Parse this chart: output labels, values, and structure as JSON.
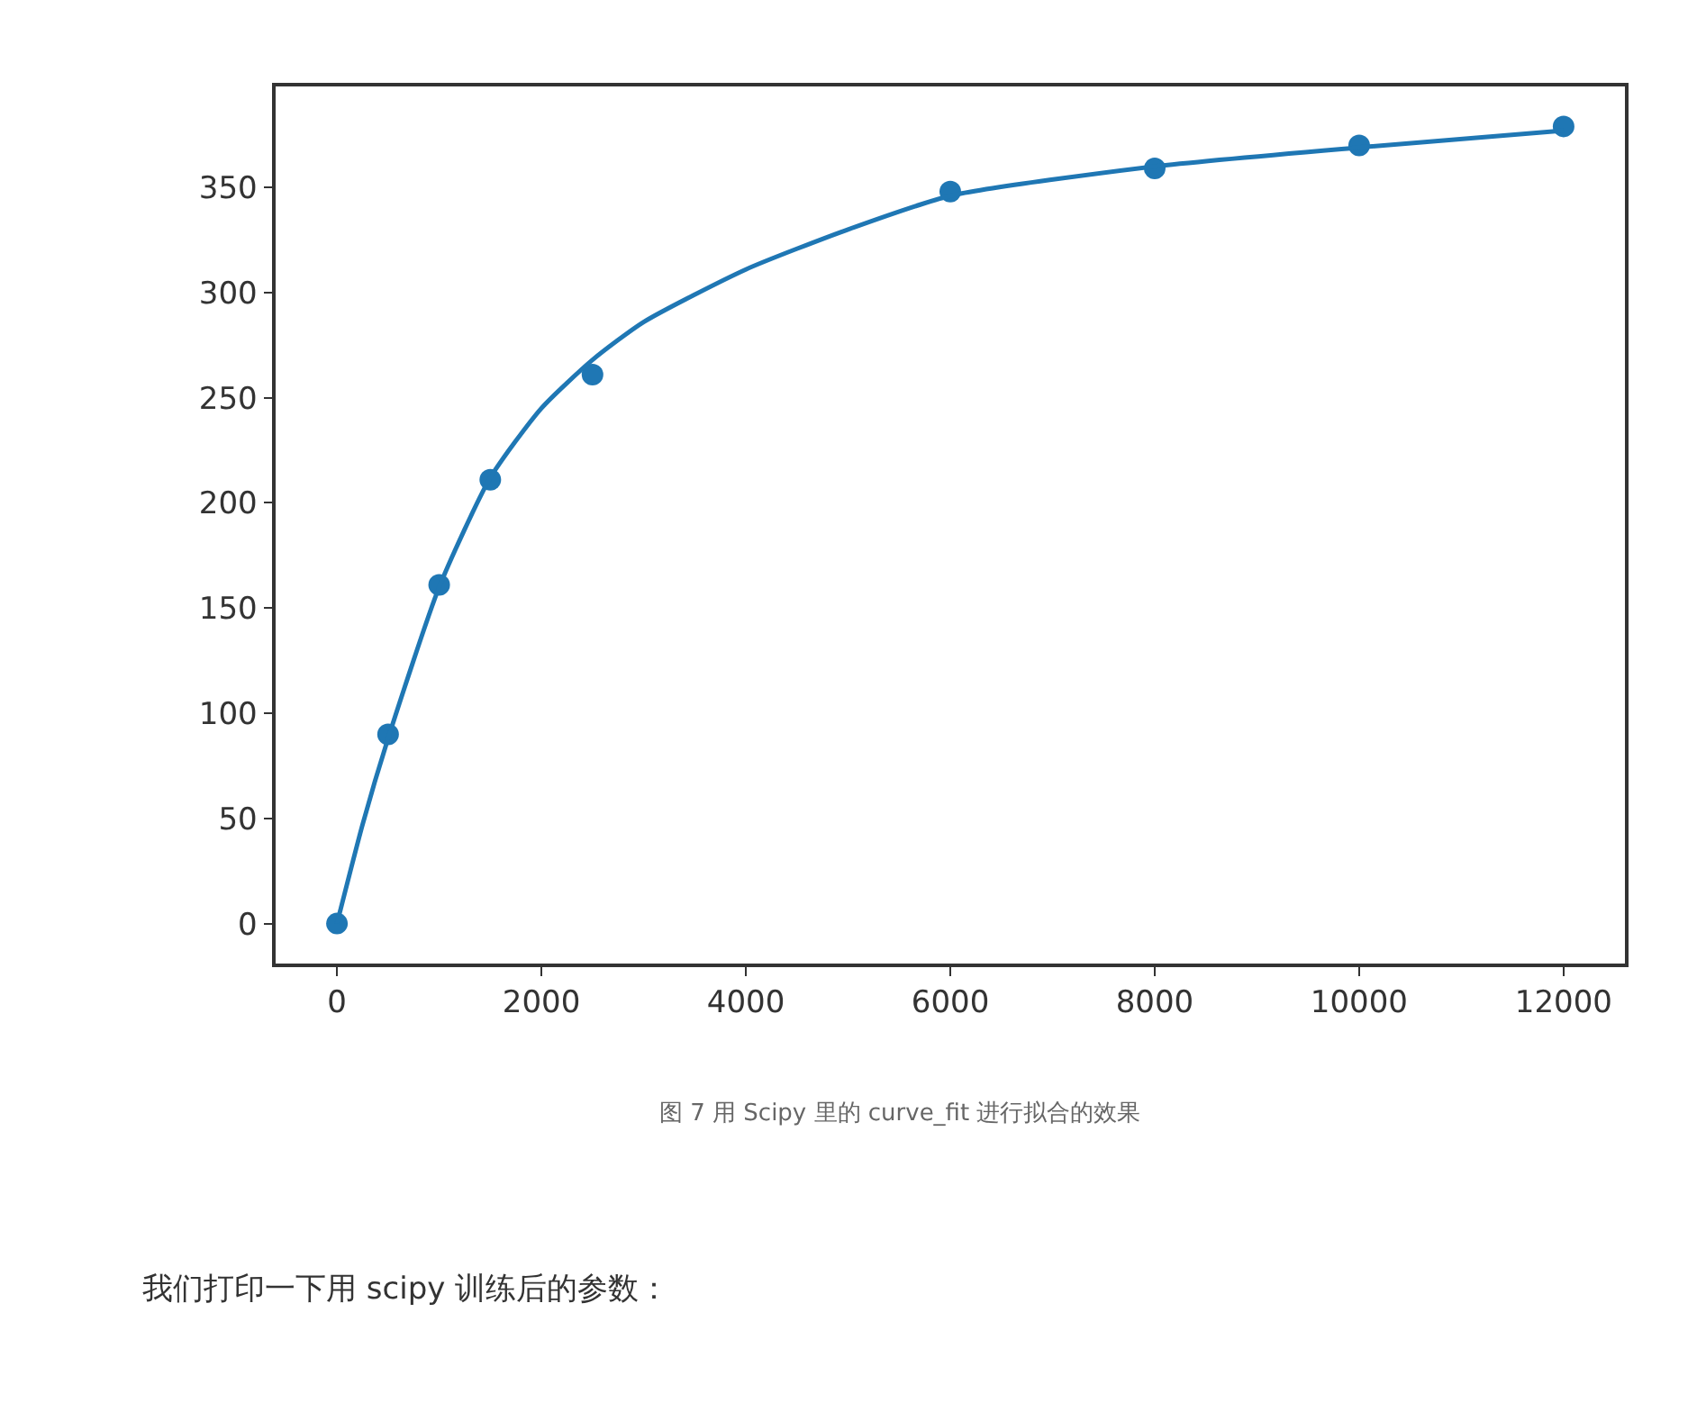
{
  "chart_data": {
    "type": "scatter",
    "series": [
      {
        "color": "#1f77b4",
        "marker": "circle",
        "x": [
          0,
          500,
          1000,
          1500,
          2500,
          6000,
          8000,
          10000,
          12000
        ],
        "values": [
          0,
          90,
          161,
          211,
          261,
          348,
          359,
          370,
          379
        ]
      },
      {
        "type": "line",
        "color": "#1f77b4",
        "marker": "none",
        "line_style": "solid",
        "x": [
          0,
          250,
          500,
          1000,
          1500,
          2000,
          2500,
          3000,
          4000,
          5000,
          6000,
          8000,
          10000,
          12000
        ],
        "values": [
          0,
          47,
          88,
          160,
          212,
          245,
          268,
          286,
          311,
          330,
          346,
          360,
          369,
          377
        ]
      }
    ],
    "xlim": [
      -600,
      12600
    ],
    "xticks": [
      0,
      2000,
      4000,
      6000,
      8000,
      10000,
      12000
    ],
    "ylim": [
      -19,
      398
    ],
    "yticks": [
      0,
      50,
      100,
      150,
      200,
      250,
      300,
      350
    ],
    "annotations": [
      "图 7 用 Scipy 里的 curve_fit 进行拟合的效果",
      "我们打印一下用 scipy 训练后的参数："
    ]
  }
}
